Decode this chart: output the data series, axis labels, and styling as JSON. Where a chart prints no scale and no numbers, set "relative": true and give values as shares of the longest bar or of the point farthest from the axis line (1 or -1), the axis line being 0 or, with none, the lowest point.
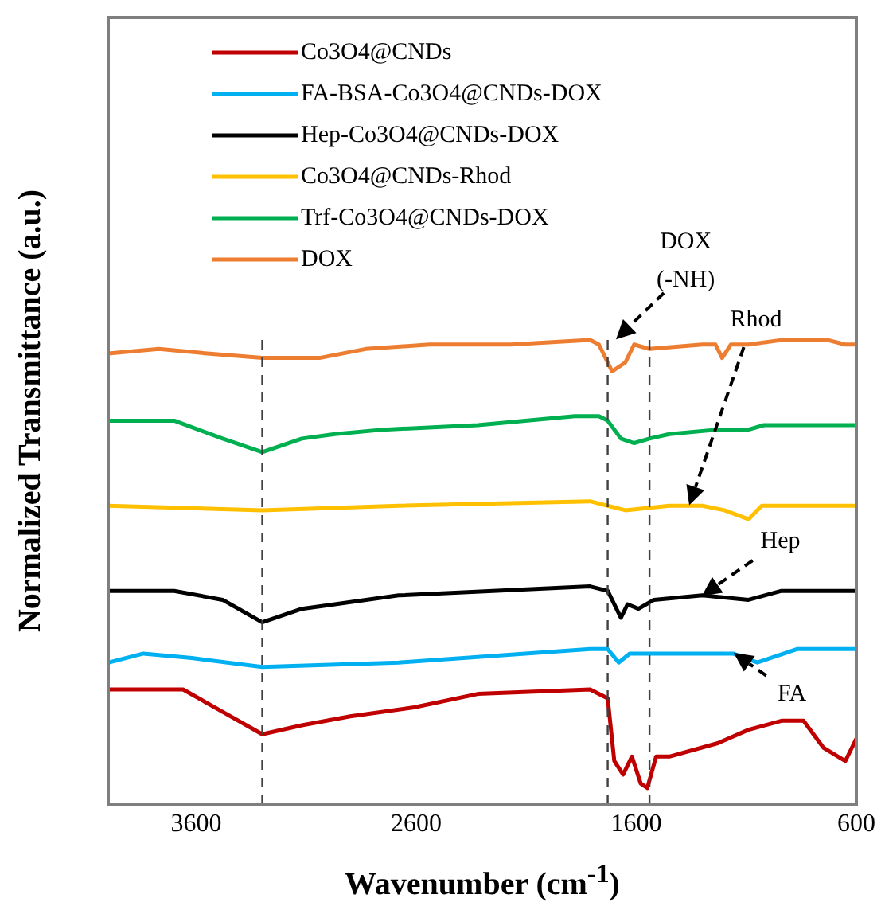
{
  "chart_data": {
    "type": "line",
    "relative": true,
    "xlabel": "Wavenumber (cm$^{-1}$)",
    "ylabel": "Normalized Transmittance (a.u.)",
    "xlim": [
      4000,
      600
    ],
    "xticks": [
      3600,
      2600,
      1600,
      600
    ],
    "tick_labels": "x",
    "grid": false,
    "legend": "top left",
    "series": [
      {
        "name": "Co3O4@CNDs",
        "color": "#c00000",
        "x": [
          4000,
          3660,
          3480,
          3300,
          3120,
          2900,
          2610,
          2320,
          1810,
          1730,
          1700,
          1660,
          1620,
          1580,
          1550,
          1510,
          1450,
          1230,
          1090,
          940,
          840,
          750,
          650,
          600
        ],
        "values": [
          0.22,
          0.22,
          0.17,
          0.12,
          0.14,
          0.16,
          0.18,
          0.21,
          0.22,
          0.2,
          0.06,
          0.03,
          0.07,
          0.01,
          0,
          0.07,
          0.07,
          0.1,
          0.13,
          0.15,
          0.15,
          0.09,
          0.06,
          0.11
        ]
      },
      {
        "name": "FA-BSA-Co3O4@CNDs-DOX",
        "color": "#00b0f0",
        "x": [
          4000,
          3840,
          3620,
          3300,
          2680,
          1810,
          1730,
          1680,
          1630,
          1450,
          1160,
          1050,
          870,
          600
        ],
        "values": [
          0.28,
          0.3,
          0.29,
          0.27,
          0.28,
          0.31,
          0.31,
          0.28,
          0.3,
          0.3,
          0.3,
          0.28,
          0.31,
          0.31
        ]
      },
      {
        "name": "Hep-Co3O4@CNDs-DOX",
        "color": "#000000",
        "x": [
          4000,
          3700,
          3480,
          3300,
          3120,
          2970,
          2680,
          1810,
          1730,
          1670,
          1640,
          1590,
          1520,
          1300,
          1090,
          940,
          600
        ],
        "values": [
          0.44,
          0.44,
          0.42,
          0.37,
          0.4,
          0.41,
          0.43,
          0.45,
          0.44,
          0.38,
          0.41,
          0.4,
          0.42,
          0.43,
          0.42,
          0.44,
          0.44
        ]
      },
      {
        "name": "Co3O4@CNDs-Rhod",
        "color": "#ffc000",
        "x": [
          4000,
          3300,
          2680,
          1810,
          1730,
          1650,
          1450,
          1300,
          1200,
          1090,
          1030,
          600
        ],
        "values": [
          0.63,
          0.62,
          0.63,
          0.64,
          0.63,
          0.62,
          0.63,
          0.63,
          0.62,
          0.6,
          0.63,
          0.63
        ]
      },
      {
        "name": "Trf-Co3O4@CNDs-DOX",
        "color": "#00b050",
        "x": [
          4000,
          3700,
          3480,
          3300,
          3120,
          2970,
          2750,
          2320,
          1880,
          1770,
          1730,
          1670,
          1610,
          1540,
          1450,
          1230,
          1090,
          1020,
          600
        ],
        "values": [
          0.82,
          0.82,
          0.78,
          0.75,
          0.78,
          0.79,
          0.8,
          0.81,
          0.83,
          0.83,
          0.82,
          0.78,
          0.77,
          0.78,
          0.79,
          0.8,
          0.8,
          0.81,
          0.81
        ]
      },
      {
        "name": "DOX",
        "color": "#ed7d31",
        "x": [
          4000,
          3770,
          3550,
          3300,
          3040,
          2830,
          2540,
          2170,
          1810,
          1770,
          1710,
          1650,
          1610,
          1540,
          1300,
          1240,
          1210,
          1170,
          1090,
          940,
          730,
          650,
          600
        ],
        "values": [
          0.97,
          0.98,
          0.97,
          0.96,
          0.96,
          0.98,
          0.99,
          0.99,
          1,
          0.99,
          0.93,
          0.95,
          0.99,
          0.98,
          0.99,
          0.99,
          0.96,
          0.99,
          0.99,
          1,
          1,
          0.99,
          0.99
        ]
      }
    ],
    "ref_lines": [
      {
        "axis": "x",
        "value": 3300,
        "color": "#404040",
        "line_style": "dashed"
      },
      {
        "axis": "x",
        "value": 1730,
        "color": "#404040",
        "line_style": "dashed"
      },
      {
        "axis": "x",
        "value": 1540,
        "color": "#404040",
        "line_style": "dashed"
      }
    ],
    "annotations": [
      "DOX\n(-NH)",
      "Rhod",
      {
        "text": "Hep",
        "x": 1300,
        "y": 0.43
      },
      {
        "text": "FA",
        "x": 1160,
        "y": 0.3
      }
    ]
  }
}
